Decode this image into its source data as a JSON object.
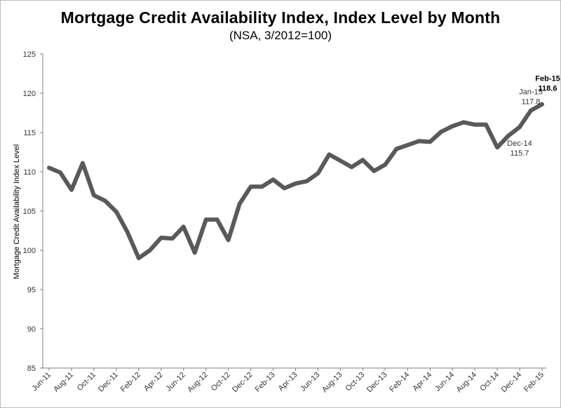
{
  "chart_data": {
    "type": "line",
    "title": "Mortgage Credit Availability Index, Index Level by Month",
    "subtitle": "(NSA, 3/2012=100)",
    "ylabel": "Mortgage Credit Availability Index Level",
    "xlabel": "",
    "ylim": [
      85,
      125
    ],
    "yticks": [
      "85",
      "90",
      "95",
      "100",
      "105",
      "110",
      "115",
      "120",
      "125"
    ],
    "grid": false,
    "legend": "none",
    "line_color": "#595959",
    "x_tick_labels": [
      "Jun-11",
      "Aug-11",
      "Oct-11",
      "Dec-11",
      "Feb-12",
      "Apr-12",
      "Jun-12",
      "Aug-12",
      "Oct-12",
      "Dec-12",
      "Feb-13",
      "Apr-13",
      "Jun-13",
      "Aug-13",
      "Oct-13",
      "Dec-13",
      "Feb-14",
      "Apr-14",
      "Jun-14",
      "Aug-14",
      "Oct-14",
      "Dec-14",
      "Feb-15"
    ],
    "x": [
      "Jun-11",
      "Jul-11",
      "Aug-11",
      "Sep-11",
      "Oct-11",
      "Nov-11",
      "Dec-11",
      "Jan-12",
      "Feb-12",
      "Mar-12",
      "Apr-12",
      "May-12",
      "Jun-12",
      "Jul-12",
      "Aug-12",
      "Sep-12",
      "Oct-12",
      "Nov-12",
      "Dec-12",
      "Jan-13",
      "Feb-13",
      "Mar-13",
      "Apr-13",
      "May-13",
      "Jun-13",
      "Jul-13",
      "Aug-13",
      "Sep-13",
      "Oct-13",
      "Nov-13",
      "Dec-13",
      "Jan-14",
      "Feb-14",
      "Mar-14",
      "Apr-14",
      "May-14",
      "Jun-14",
      "Jul-14",
      "Aug-14",
      "Sep-14",
      "Oct-14",
      "Nov-14",
      "Dec-14",
      "Jan-15",
      "Feb-15"
    ],
    "series": [
      {
        "values": [
          110.5,
          109.9,
          107.7,
          111.1,
          107.0,
          106.3,
          104.9,
          102.3,
          99.0,
          100.0,
          101.6,
          101.5,
          103.0,
          99.7,
          103.9,
          103.9,
          101.3,
          105.9,
          108.1,
          108.1,
          109.0,
          107.9,
          108.5,
          108.8,
          109.8,
          112.2,
          111.4,
          110.6,
          111.5,
          110.1,
          110.9,
          112.9,
          113.4,
          113.9,
          113.8,
          115.1,
          115.8,
          116.3,
          116.0,
          116.0,
          113.1,
          114.6,
          115.7,
          117.8,
          118.6
        ]
      }
    ],
    "annotations": [
      {
        "line1": "Dec-14",
        "line2": "115.7",
        "bold": false
      },
      {
        "line1": "Jan-15",
        "line2": "117.8",
        "bold": false
      },
      {
        "line1": "Feb-15",
        "line2": "118.6",
        "bold": true
      }
    ]
  }
}
